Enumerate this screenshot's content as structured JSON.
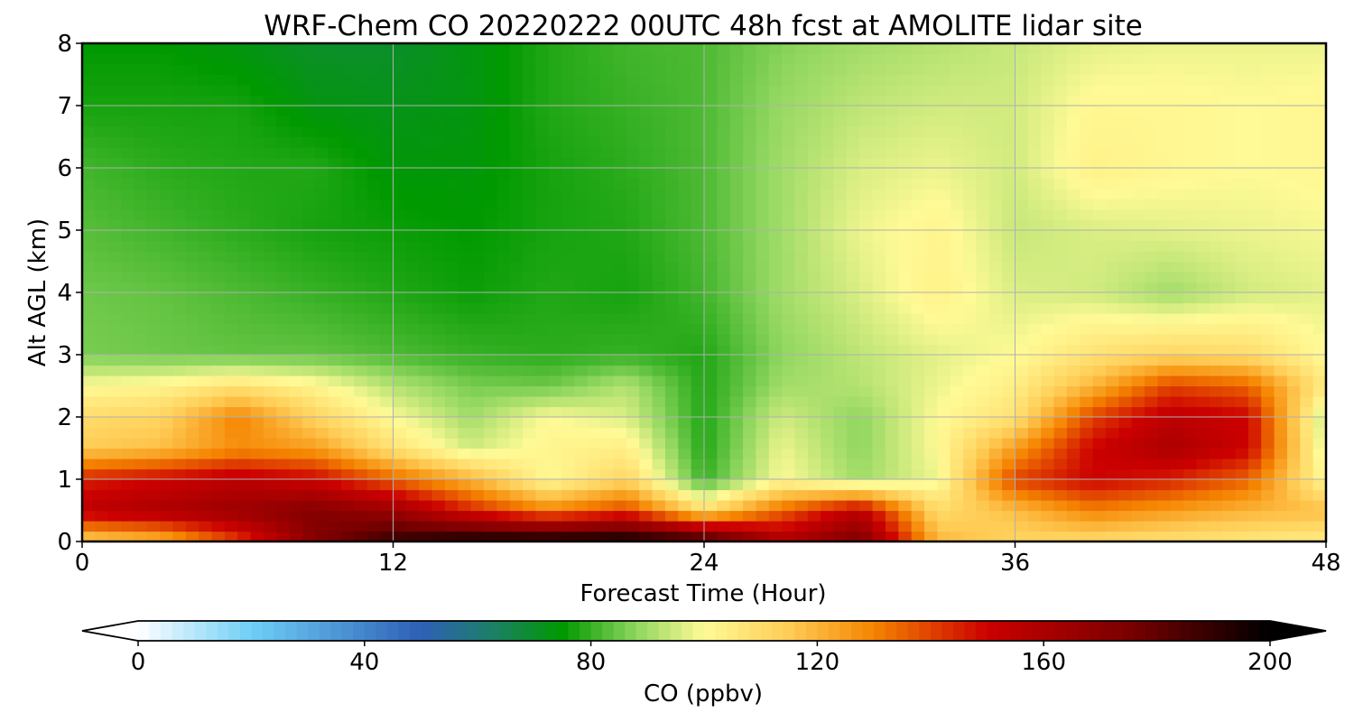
{
  "chart_data": {
    "type": "heatmap",
    "title": "WRF-Chem CO  20220222 00UTC 48h fcst at AMOLITE lidar site",
    "xlabel": "Forecast Time (Hour)",
    "ylabel": "Alt AGL (km)",
    "xlim": [
      0,
      48
    ],
    "ylim": [
      0,
      8
    ],
    "xticks": [
      0,
      12,
      24,
      36,
      48
    ],
    "yticks": [
      0,
      1,
      2,
      3,
      4,
      5,
      6,
      7,
      8
    ],
    "grid": true,
    "x": [
      0,
      3,
      6,
      9,
      12,
      15,
      18,
      21,
      24,
      27,
      30,
      33,
      36,
      39,
      42,
      45,
      48
    ],
    "y": [
      0,
      0.5,
      1,
      1.5,
      2,
      2.5,
      3,
      4,
      5,
      6,
      7,
      8
    ],
    "z_units": "ppbv",
    "z": [
      [
        112,
        118,
        140,
        172,
        190,
        198,
        200,
        200,
        192,
        160,
        175,
        120,
        112,
        110,
        108,
        106,
        104
      ],
      [
        155,
        160,
        165,
        172,
        165,
        145,
        130,
        140,
        110,
        135,
        155,
        110,
        118,
        130,
        125,
        120,
        118
      ],
      [
        145,
        150,
        155,
        150,
        135,
        120,
        100,
        112,
        80,
        100,
        90,
        98,
        140,
        150,
        145,
        135,
        100
      ],
      [
        115,
        118,
        128,
        125,
        108,
        95,
        102,
        104,
        78,
        98,
        88,
        100,
        125,
        150,
        160,
        150,
        95
      ],
      [
        110,
        112,
        130,
        112,
        100,
        90,
        100,
        96,
        78,
        95,
        88,
        100,
        108,
        140,
        155,
        150,
        92
      ],
      [
        100,
        102,
        108,
        102,
        92,
        86,
        85,
        92,
        78,
        90,
        92,
        98,
        104,
        120,
        140,
        135,
        105
      ],
      [
        86,
        85,
        84,
        84,
        82,
        80,
        79,
        80,
        78,
        88,
        93,
        97,
        100,
        108,
        112,
        110,
        100
      ],
      [
        85,
        84,
        82,
        80,
        78,
        76,
        78,
        77,
        81,
        90,
        96,
        103,
        96,
        95,
        90,
        95,
        97
      ],
      [
        83,
        81,
        79,
        77,
        76,
        75,
        77,
        78,
        82,
        90,
        98,
        102,
        94,
        96,
        97,
        98,
        99
      ],
      [
        81,
        79,
        78,
        78,
        74,
        74,
        77,
        79,
        82,
        90,
        96,
        98,
        95,
        103,
        101,
        100,
        101
      ],
      [
        77,
        77,
        77,
        73,
        72,
        73,
        78,
        80,
        82,
        89,
        93,
        95,
        95,
        101,
        101,
        100,
        101
      ],
      [
        75,
        75,
        73,
        70,
        70,
        73,
        78,
        81,
        82,
        87,
        90,
        92,
        94,
        97,
        98,
        98,
        98
      ]
    ],
    "colorbar": {
      "label": "CO  (ppbv)",
      "ticks": [
        0,
        40,
        80,
        120,
        160,
        200
      ],
      "range": [
        0,
        200
      ],
      "extend": "both",
      "stops": [
        {
          "v": 0,
          "c": "#ffffff"
        },
        {
          "v": 20,
          "c": "#6ecff6"
        },
        {
          "v": 50,
          "c": "#2e5fb6"
        },
        {
          "v": 62,
          "c": "#1d7e6c"
        },
        {
          "v": 75,
          "c": "#009900"
        },
        {
          "v": 88,
          "c": "#8fd65f"
        },
        {
          "v": 100,
          "c": "#fffa96"
        },
        {
          "v": 115,
          "c": "#ffcc55"
        },
        {
          "v": 130,
          "c": "#f58400"
        },
        {
          "v": 150,
          "c": "#cc0000"
        },
        {
          "v": 175,
          "c": "#7a0000"
        },
        {
          "v": 200,
          "c": "#000000"
        }
      ]
    }
  }
}
